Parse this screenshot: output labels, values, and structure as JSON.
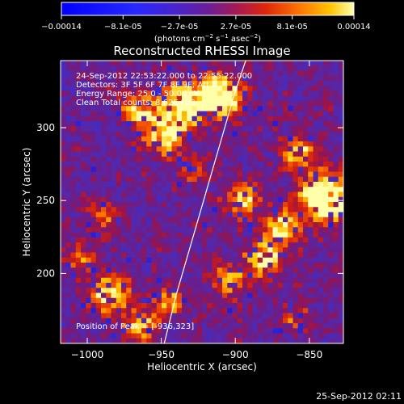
{
  "chart_data": {
    "type": "heatmap",
    "title": "Reconstructed RHESSI Image",
    "xlabel": "Heliocentric X (arcsec)",
    "ylabel": "Heliocentric Y (arcsec)",
    "xlim": [
      -1018,
      -827
    ],
    "ylim": [
      152,
      346
    ],
    "x_ticks": [
      -1000,
      -950,
      -900,
      -850
    ],
    "x_tick_labels": [
      "−1000",
      "−950",
      "−900",
      "−850"
    ],
    "y_ticks": [
      200,
      250,
      300
    ],
    "y_tick_labels": [
      "200",
      "250",
      "300"
    ],
    "colorbar": {
      "range": [
        -0.00014,
        0.00014
      ],
      "ticks": [
        -0.00014,
        -8.1e-05,
        -2.7e-05,
        2.7e-05,
        8.1e-05,
        0.00014
      ],
      "tick_labels": [
        "−0.00014",
        "−8.1e-05",
        "−2.7e-05",
        "2.7e-05",
        "8.1e-05",
        "0.00014"
      ],
      "unit_base": "(photons cm",
      "unit_exp1": "−2",
      "unit_mid1": " s",
      "unit_exp2": "−1",
      "unit_mid2": " asec",
      "unit_exp3": "−2",
      "unit_end": ")"
    },
    "annotations": {
      "time": "24-Sep-2012 22:53:22.000 to 22:55:22.000",
      "detectors": "Detectors: 3F 5F 6F 7F 8F 9F; Att 0",
      "energy": "Energy Range: 25.0 - 50.0 keV",
      "clean": "Clean    Total counts: 8.62E+03",
      "peak": "Position of Peak = [-936,323]"
    },
    "peak": {
      "x": -936,
      "y": 323
    },
    "limb_curve": [
      [
        -948,
        152
      ],
      [
        -940,
        185
      ],
      [
        -930,
        220
      ],
      [
        -920,
        255
      ],
      [
        -910,
        290
      ],
      [
        -900,
        325
      ],
      [
        -893,
        346
      ]
    ],
    "hot_spots": [
      {
        "x": -910,
        "y": 322,
        "amp": 1.0,
        "sigma": 9
      },
      {
        "x": -935,
        "y": 315,
        "amp": 0.8,
        "sigma": 10
      },
      {
        "x": -948,
        "y": 295,
        "amp": 0.6,
        "sigma": 9
      },
      {
        "x": -965,
        "y": 312,
        "amp": 0.5,
        "sigma": 8
      },
      {
        "x": -840,
        "y": 252,
        "amp": 0.95,
        "sigma": 11
      },
      {
        "x": -858,
        "y": 282,
        "amp": 0.55,
        "sigma": 8
      },
      {
        "x": -868,
        "y": 232,
        "amp": 0.55,
        "sigma": 8
      },
      {
        "x": -895,
        "y": 250,
        "amp": 0.55,
        "sigma": 8
      },
      {
        "x": -880,
        "y": 210,
        "amp": 0.6,
        "sigma": 9
      },
      {
        "x": -905,
        "y": 195,
        "amp": 0.45,
        "sigma": 8
      },
      {
        "x": -985,
        "y": 185,
        "amp": 0.6,
        "sigma": 9
      },
      {
        "x": -965,
        "y": 165,
        "amp": 0.5,
        "sigma": 8
      },
      {
        "x": -945,
        "y": 180,
        "amp": 0.45,
        "sigma": 7
      },
      {
        "x": -990,
        "y": 240,
        "amp": 0.35,
        "sigma": 7
      },
      {
        "x": -1005,
        "y": 210,
        "amp": 0.3,
        "sigma": 7
      },
      {
        "x": -860,
        "y": 170,
        "amp": 0.3,
        "sigma": 7
      },
      {
        "x": -930,
        "y": 270,
        "amp": 0.25,
        "sigma": 7
      }
    ]
  },
  "footer": {
    "timestamp": "25-Sep-2012 02:11"
  },
  "colors": {
    "background": "#000000",
    "foreground": "#ffffff"
  }
}
